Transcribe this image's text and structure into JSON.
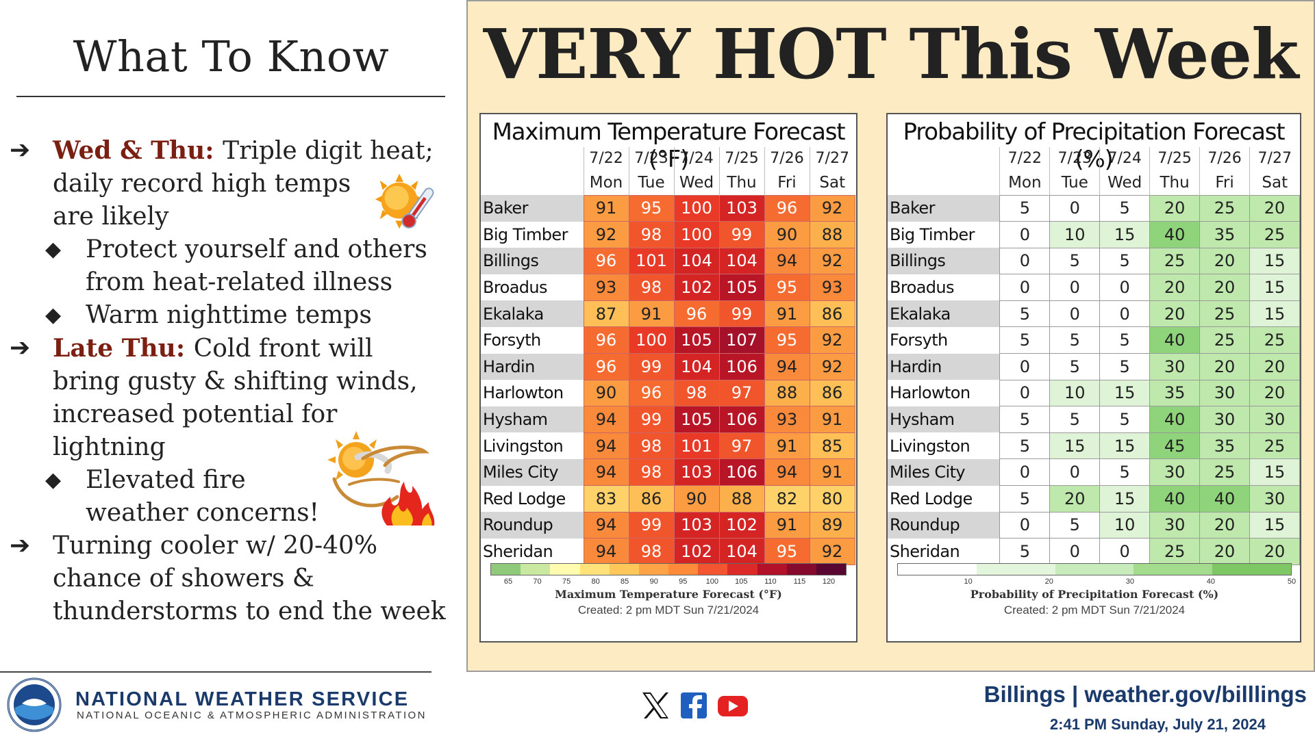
{
  "left": {
    "title": "What To Know",
    "bullets": [
      {
        "level": 1,
        "highlight": "Wed & Thu:",
        "lines": [
          "Triple digit heat;",
          "daily record high temps",
          "are likely"
        ]
      },
      {
        "level": 2,
        "lines": [
          "Protect yourself and others",
          "from heat-related illness"
        ]
      },
      {
        "level": 2,
        "lines": [
          "Warm nighttime temps"
        ]
      },
      {
        "level": 1,
        "highlight": "Late Thu:",
        "lines": [
          "Cold front will",
          "bring gusty & shifting winds,",
          "increased potential for",
          "lightning"
        ]
      },
      {
        "level": 2,
        "lines": [
          "Elevated fire",
          "weather concerns!"
        ]
      },
      {
        "level": 1,
        "lines": [
          "Turning cooler w/ 20-40%",
          "chance of showers &",
          "thunderstorms to end the week"
        ]
      }
    ],
    "icons": [
      "sun-thermometer-icon",
      "sun-wind-fire-icon"
    ]
  },
  "headline": "VERY HOT This Week",
  "dates": [
    "7/22",
    "7/23",
    "7/24",
    "7/25",
    "7/26",
    "7/27"
  ],
  "days": [
    "Mon",
    "Tue",
    "Wed",
    "Thu",
    "Fri",
    "Sat"
  ],
  "locations": [
    "Baker",
    "Big Timber",
    "Billings",
    "Broadus",
    "Ekalaka",
    "Forsyth",
    "Hardin",
    "Harlowton",
    "Hysham",
    "Livingston",
    "Miles City",
    "Red Lodge",
    "Roundup",
    "Sheridan"
  ],
  "temp": {
    "title": "Maximum Temperature Forecast (°F)",
    "values": [
      [
        91,
        95,
        100,
        103,
        96,
        92
      ],
      [
        92,
        98,
        100,
        99,
        90,
        88
      ],
      [
        96,
        101,
        104,
        104,
        94,
        92
      ],
      [
        93,
        98,
        102,
        105,
        95,
        93
      ],
      [
        87,
        91,
        96,
        99,
        91,
        86
      ],
      [
        96,
        100,
        105,
        107,
        95,
        92
      ],
      [
        96,
        99,
        104,
        106,
        94,
        92
      ],
      [
        90,
        96,
        98,
        97,
        88,
        86
      ],
      [
        94,
        99,
        105,
        106,
        93,
        91
      ],
      [
        94,
        98,
        101,
        97,
        91,
        85
      ],
      [
        94,
        98,
        103,
        106,
        94,
        91
      ],
      [
        83,
        86,
        90,
        88,
        82,
        80
      ],
      [
        94,
        99,
        103,
        102,
        91,
        89
      ],
      [
        94,
        98,
        102,
        104,
        95,
        92
      ]
    ],
    "scale_ticks": [
      "65",
      "70",
      "75",
      "80",
      "85",
      "90",
      "95",
      "100",
      "105",
      "110",
      "115",
      "120"
    ],
    "scale_colors": [
      "#8fc97a",
      "#c9e8a0",
      "#fffcb0",
      "#ffe37a",
      "#ffc65a",
      "#ffa347",
      "#ff8a3a",
      "#f25530",
      "#dc2a28",
      "#b3102a",
      "#860a2e",
      "#5a0632"
    ],
    "scale_title": "Maximum Temperature Forecast (°F)",
    "created": "Created: 2 pm MDT Sun 7/21/2024"
  },
  "pop": {
    "title": "Probability of Precipitation Forecast (%)",
    "values": [
      [
        5,
        0,
        5,
        20,
        25,
        20
      ],
      [
        0,
        10,
        15,
        40,
        35,
        25
      ],
      [
        0,
        5,
        5,
        25,
        20,
        15
      ],
      [
        0,
        0,
        0,
        20,
        20,
        15
      ],
      [
        5,
        0,
        0,
        20,
        25,
        15
      ],
      [
        5,
        5,
        5,
        40,
        25,
        25
      ],
      [
        0,
        5,
        5,
        30,
        20,
        20
      ],
      [
        0,
        10,
        15,
        35,
        30,
        20
      ],
      [
        5,
        5,
        5,
        40,
        30,
        30
      ],
      [
        5,
        15,
        15,
        45,
        35,
        25
      ],
      [
        0,
        0,
        5,
        30,
        25,
        15
      ],
      [
        5,
        20,
        15,
        40,
        40,
        30
      ],
      [
        0,
        5,
        10,
        30,
        20,
        15
      ],
      [
        5,
        0,
        0,
        25,
        20,
        20
      ]
    ],
    "scale_ticks": [
      "10",
      "20",
      "30",
      "40",
      "50"
    ],
    "scale_colors": [
      "#ffffff",
      "#e3f5db",
      "#c8ebbb",
      "#a4dc8e",
      "#7dc865"
    ],
    "scale_title": "Probability of Precipitation Forecast (%)",
    "created": "Created: 2 pm MDT Sun 7/21/2024"
  },
  "footer": {
    "agency": "NATIONAL WEATHER SERVICE",
    "subagency": "NATIONAL OCEANIC & ATMOSPHERIC ADMINISTRATION",
    "social_icons": [
      "x-icon",
      "facebook-icon",
      "youtube-icon"
    ],
    "office": "Billings | weather.gov/billlings",
    "issued": "2:41 PM Sunday, July 21, 2024"
  }
}
